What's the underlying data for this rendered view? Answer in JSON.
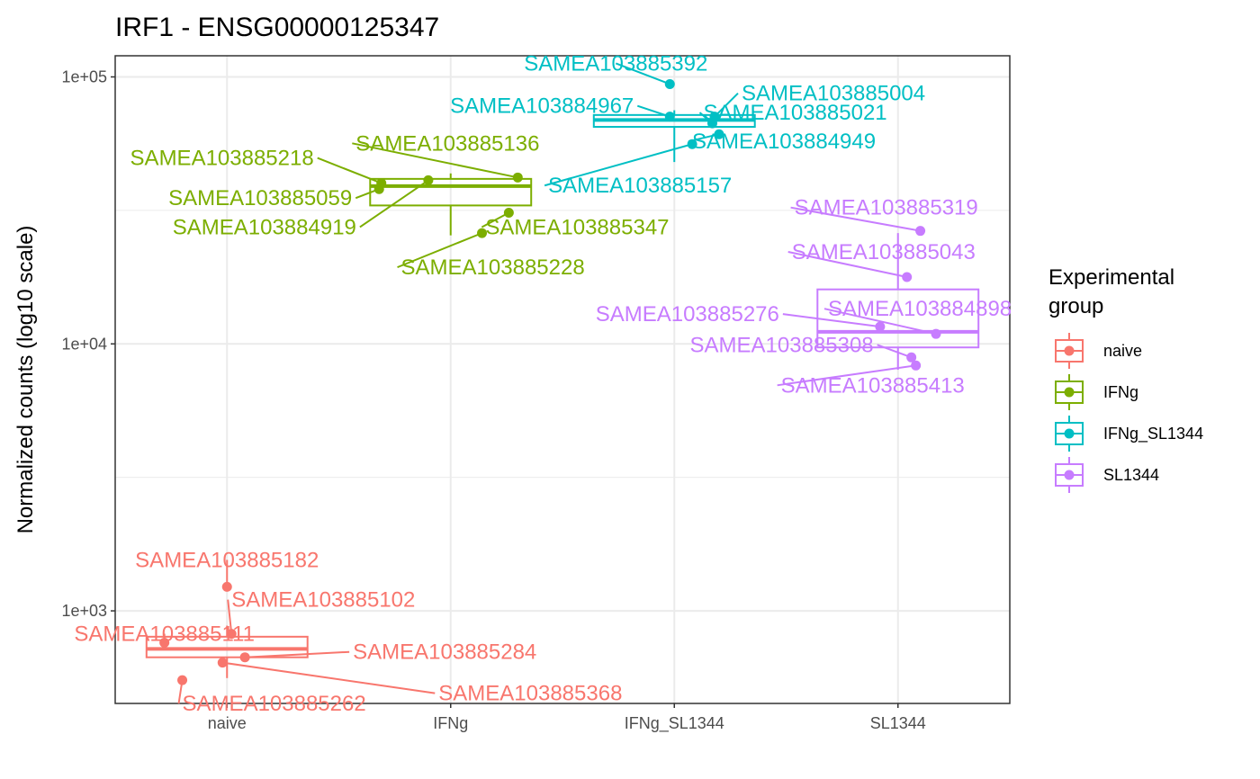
{
  "chart_data": {
    "type": "box",
    "title": "IRF1 - ENSG00000125347",
    "xlabel": "",
    "ylabel": "Normalized counts (log10 scale)",
    "y_scale": "log10",
    "ylim": [
      450,
      120000
    ],
    "y_ticks": [
      {
        "value": 1000,
        "label": "1e+03"
      },
      {
        "value": 10000,
        "label": "1e+04"
      },
      {
        "value": 100000,
        "label": "1e+05"
      }
    ],
    "grid": true,
    "legend": {
      "title_lines": [
        "Experimental",
        "group"
      ],
      "position": "right"
    },
    "categories": [
      "naive",
      "IFNg",
      "IFNg_SL1344",
      "SL1344"
    ],
    "groups": [
      {
        "name": "naive",
        "color": "#F8766D",
        "box": {
          "min": 560,
          "q1": 670,
          "median": 720,
          "q3": 800,
          "max": 880
        },
        "points": [
          {
            "sample": "SAMEA103885182",
            "x_jitter": 0.0,
            "y": 1230
          },
          {
            "sample": "SAMEA103885102",
            "x_jitter": 0.02,
            "y": 820
          },
          {
            "sample": "SAMEA103885111",
            "x_jitter": -0.28,
            "y": 760
          },
          {
            "sample": "SAMEA103885284",
            "x_jitter": 0.08,
            "y": 670
          },
          {
            "sample": "SAMEA103885262",
            "x_jitter": -0.2,
            "y": 550
          },
          {
            "sample": "SAMEA103885368",
            "x_jitter": -0.02,
            "y": 640
          }
        ]
      },
      {
        "name": "IFNg",
        "color": "#7CAE00",
        "box": {
          "min": 25500,
          "q1": 33000,
          "median": 39000,
          "q3": 41500,
          "max": 43500
        },
        "points": [
          {
            "sample": "SAMEA103885218",
            "x_jitter": -0.31,
            "y": 40000
          },
          {
            "sample": "SAMEA103885136",
            "x_jitter": 0.3,
            "y": 42000
          },
          {
            "sample": "SAMEA103885059",
            "x_jitter": -0.32,
            "y": 38000
          },
          {
            "sample": "SAMEA103884919",
            "x_jitter": -0.1,
            "y": 41000
          },
          {
            "sample": "SAMEA103885347",
            "x_jitter": 0.26,
            "y": 31000
          },
          {
            "sample": "SAMEA103885228",
            "x_jitter": 0.14,
            "y": 26000
          }
        ]
      },
      {
        "name": "IFNg_SL1344",
        "color": "#00BFC4",
        "box": {
          "min": 48000,
          "q1": 65000,
          "median": 69000,
          "q3": 72000,
          "max": 75000
        },
        "points": [
          {
            "sample": "SAMEA103885392",
            "x_jitter": -0.02,
            "y": 94000
          },
          {
            "sample": "SAMEA103885004",
            "x_jitter": 0.18,
            "y": 71000
          },
          {
            "sample": "SAMEA103884967",
            "x_jitter": -0.02,
            "y": 71000
          },
          {
            "sample": "SAMEA103885021",
            "x_jitter": 0.17,
            "y": 67000
          },
          {
            "sample": "SAMEA103884949",
            "x_jitter": 0.2,
            "y": 61000
          },
          {
            "sample": "SAMEA103885157",
            "x_jitter": 0.08,
            "y": 56000
          }
        ]
      },
      {
        "name": "SL1344",
        "color": "#C77CFF",
        "box": {
          "min": 8000,
          "q1": 9700,
          "median": 11100,
          "q3": 16000,
          "max": 26000
        },
        "points": [
          {
            "sample": "SAMEA103885319",
            "x_jitter": 0.1,
            "y": 26500
          },
          {
            "sample": "SAMEA103885043",
            "x_jitter": 0.04,
            "y": 17800
          },
          {
            "sample": "SAMEA103884898",
            "x_jitter": 0.17,
            "y": 10900
          },
          {
            "sample": "SAMEA103885276",
            "x_jitter": -0.08,
            "y": 11600
          },
          {
            "sample": "SAMEA103885308",
            "x_jitter": 0.06,
            "y": 8900
          },
          {
            "sample": "SAMEA103885413",
            "x_jitter": 0.08,
            "y": 8300
          }
        ]
      }
    ]
  }
}
